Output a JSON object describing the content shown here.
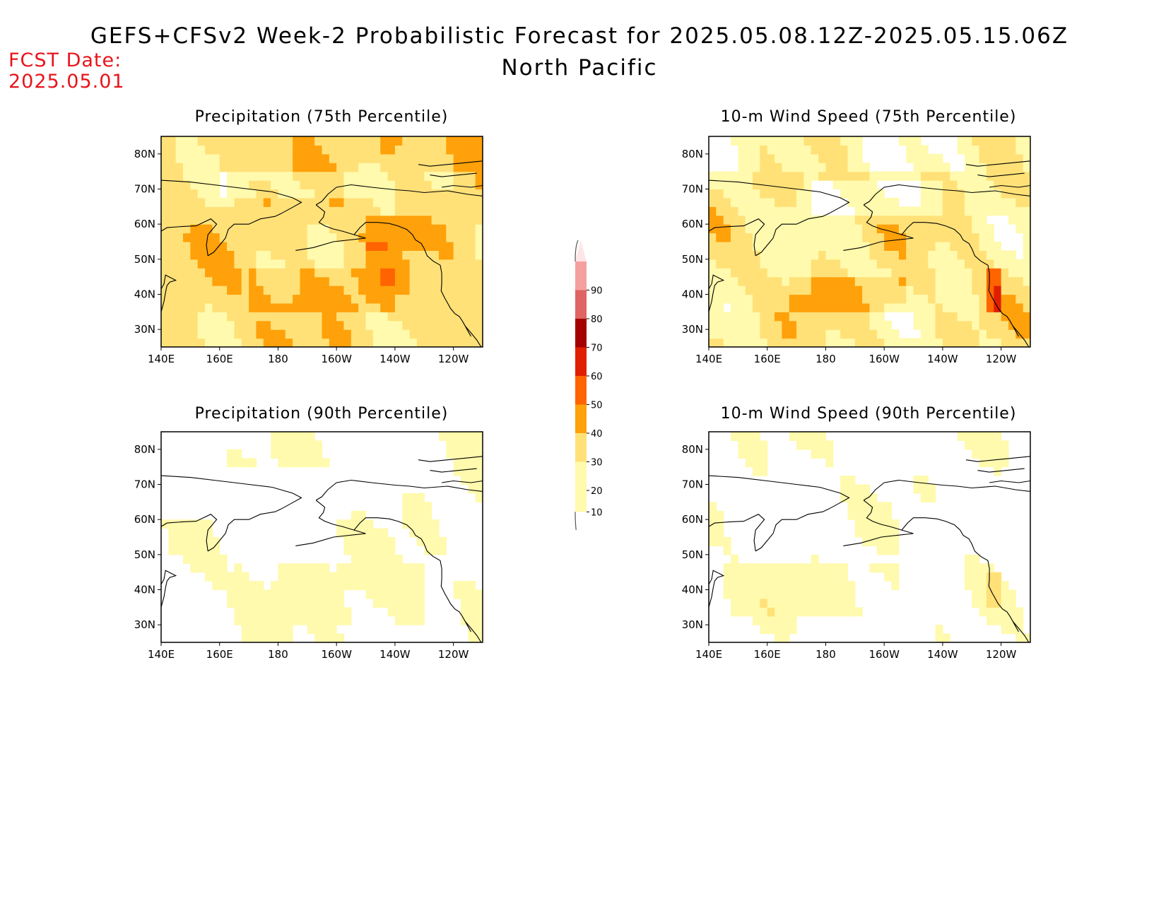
{
  "title": {
    "line1": "GEFS+CFSv2 Week-2 Probabilistic Forecast for 2025.05.08.12Z-2025.05.15.06Z",
    "line2": "North Pacific"
  },
  "fcst_date": {
    "label": "FCST Date:",
    "value": "2025.05.01"
  },
  "colors": {
    "levels": [
      "#fffaad",
      "#ffe178",
      "#ffa10a",
      "#ff6400",
      "#e01e00",
      "#a50000",
      "#e06464",
      "#f5a0a0",
      "#ffe6e6"
    ],
    "coastline": "#000000"
  },
  "chart_data": [
    {
      "type": "heatmap",
      "title": "Precipitation (75th Percentile)",
      "xticks": [
        "140E",
        "160E",
        "180",
        "160W",
        "140W",
        "120W"
      ],
      "yticks": [
        "30N",
        "40N",
        "50N",
        "60N",
        "70N",
        "80N"
      ],
      "grid": false,
      "dominant_probability_range": [
        20,
        40
      ]
    },
    {
      "type": "heatmap",
      "title": "10-m Wind Speed (75th Percentile)",
      "xticks": [
        "140E",
        "160E",
        "180",
        "160W",
        "140W",
        "120W"
      ],
      "yticks": [
        "30N",
        "40N",
        "50N",
        "60N",
        "70N",
        "80N"
      ],
      "grid": false,
      "dominant_probability_range": [
        10,
        40
      ]
    },
    {
      "type": "heatmap",
      "title": "Precipitation (90th Percentile)",
      "xticks": [
        "140E",
        "160E",
        "180",
        "160W",
        "140W",
        "120W"
      ],
      "yticks": [
        "30N",
        "40N",
        "50N",
        "60N",
        "70N",
        "80N"
      ],
      "grid": false,
      "dominant_probability_range": [
        0,
        20
      ]
    },
    {
      "type": "heatmap",
      "title": "10-m Wind Speed (90th Percentile)",
      "xticks": [
        "140E",
        "160E",
        "180",
        "160W",
        "140W",
        "120W"
      ],
      "yticks": [
        "30N",
        "40N",
        "50N",
        "60N",
        "70N",
        "80N"
      ],
      "grid": false,
      "dominant_probability_range": [
        0,
        20
      ]
    }
  ],
  "colorbar": {
    "labels": [
      "10",
      "20",
      "30",
      "40",
      "50",
      "60",
      "70",
      "80",
      "90"
    ]
  }
}
